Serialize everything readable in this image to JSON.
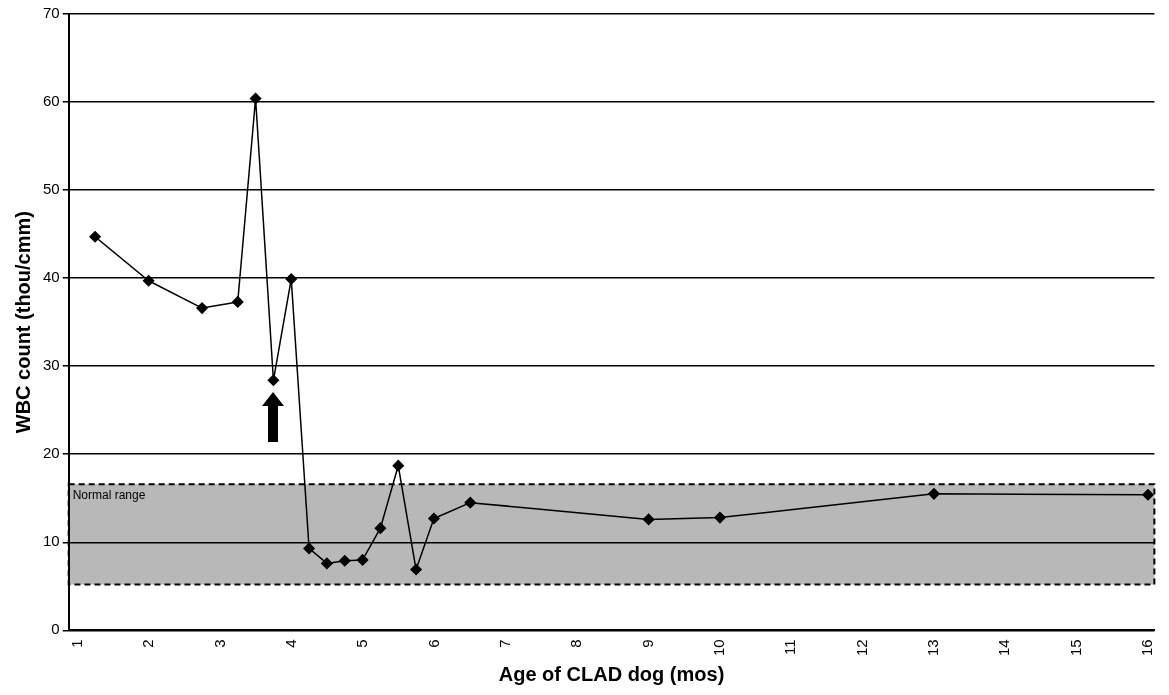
{
  "chart_data": {
    "type": "line",
    "xlabel": "Age of CLAD dog (mos)",
    "ylabel": "WBC count (thou/cmm)",
    "x": [
      1.24,
      1.99,
      2.74,
      3.24,
      3.49,
      3.74,
      3.99,
      4.24,
      4.49,
      4.74,
      4.99,
      5.24,
      5.49,
      5.74,
      5.99,
      6.5,
      9.0,
      10.0,
      13.0,
      16.0
    ],
    "series": [
      {
        "color": "#000000",
        "values": [
          44.7,
          39.7,
          36.6,
          37.3,
          60.4,
          28.4,
          39.9,
          9.3,
          7.6,
          7.9,
          8.0,
          11.6,
          18.7,
          6.9,
          12.7,
          14.5,
          12.6,
          12.8,
          15.5,
          15.4
        ]
      }
    ],
    "xlim": [
      0.87,
      16.09
    ],
    "xticks": [
      1,
      2,
      3,
      4,
      5,
      6,
      7,
      8,
      9,
      10,
      11,
      12,
      13,
      14,
      15,
      16
    ],
    "ylim": [
      0,
      70
    ],
    "yticks": [
      0,
      10,
      20,
      30,
      40,
      50,
      60,
      70
    ],
    "bands": [
      {
        "axis": "y",
        "from": 5.2,
        "to": 16.6,
        "label": "Normal range",
        "color": "#b8b8b8"
      }
    ],
    "grid": "y",
    "legend": false,
    "marker": "diamond",
    "line_style": "solid"
  }
}
